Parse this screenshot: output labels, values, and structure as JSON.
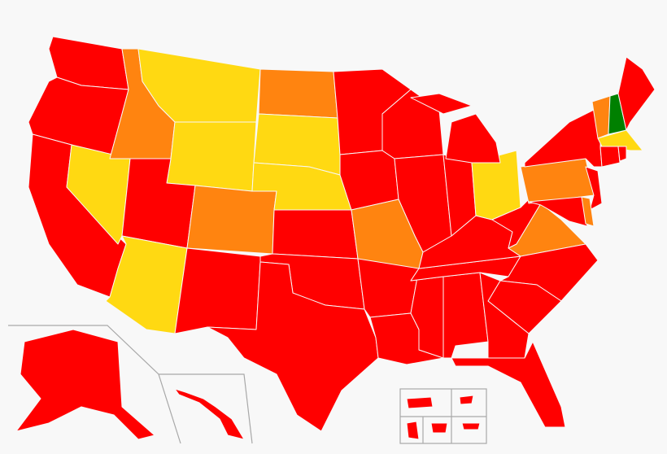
{
  "map": {
    "type": "choropleth",
    "region": "United States",
    "categories": {
      "red": "#ff0000",
      "orange": "#ff8410",
      "yellow": "#ffd912",
      "green": "#008000"
    },
    "states": {
      "WA": "red",
      "OR": "red",
      "CA": "red",
      "NV": "yellow",
      "ID": "orange",
      "MT": "yellow",
      "WY": "yellow",
      "UT": "red",
      "AZ": "yellow",
      "CO": "orange",
      "NM": "red",
      "ND": "orange",
      "SD": "yellow",
      "NE": "yellow",
      "KS": "red",
      "OK": "red",
      "TX": "red",
      "MN": "red",
      "IA": "red",
      "WI": "red",
      "IL": "red",
      "MO": "orange",
      "AR": "red",
      "LA": "red",
      "MS": "red",
      "AL": "red",
      "TN": "red",
      "KY": "red",
      "IN": "red",
      "OH": "yellow",
      "MI": "red",
      "WV": "red",
      "VA": "orange",
      "NC": "red",
      "SC": "red",
      "GA": "red",
      "FL": "red",
      "PA": "orange",
      "NY": "red",
      "NJ": "red",
      "MD": "red",
      "DE": "orange",
      "VT": "orange",
      "NH": "green",
      "ME": "red",
      "MA": "yellow",
      "CT": "red",
      "RI": "red",
      "AK": "red",
      "HI": "red",
      "PR": "red",
      "GU": "red",
      "VI": "red",
      "MP": "red",
      "AS": "red"
    }
  }
}
